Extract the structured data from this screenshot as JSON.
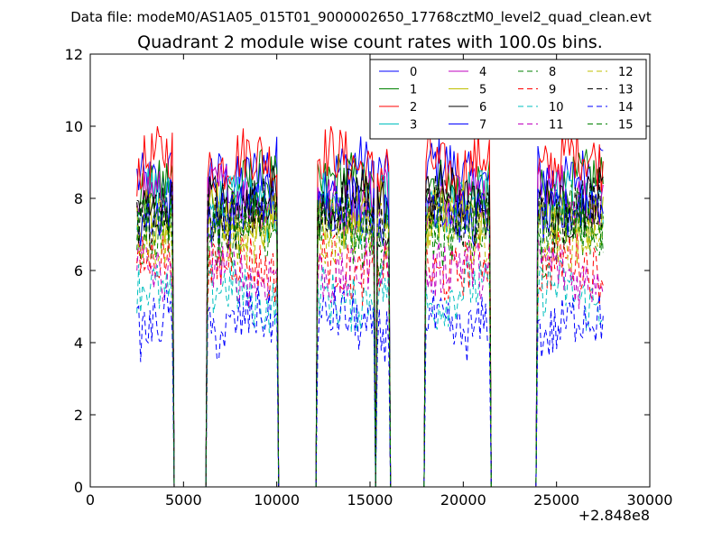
{
  "chart_data": {
    "type": "line",
    "suptitle": "Data file: modeM0/AS1A05_015T01_9000002650_17768cztM0_level2_quad_clean.evt",
    "title": "Quadrant 2 module wise count rates with 100.0s bins.",
    "xlabel": "",
    "ylabel": "",
    "x_offset_label": "+2.848e8",
    "xlim": [
      0,
      30000
    ],
    "ylim": [
      0,
      12
    ],
    "xticks": [
      0,
      5000,
      10000,
      15000,
      20000,
      25000,
      30000
    ],
    "yticks": [
      0,
      2,
      4,
      6,
      8,
      10,
      12
    ],
    "grid": false,
    "legend_position": "top-right",
    "legend_columns": 4,
    "bin_seconds": 100,
    "active_intervals": [
      [
        2500,
        4400
      ],
      [
        6300,
        10000
      ],
      [
        12200,
        15200
      ],
      [
        15400,
        16000
      ],
      [
        18000,
        21400
      ],
      [
        24000,
        27500
      ]
    ],
    "series": [
      {
        "name": "0",
        "color": "#0000ff",
        "dash": "solid",
        "level": 8.7
      },
      {
        "name": "1",
        "color": "#008000",
        "dash": "solid",
        "level": 8.3
      },
      {
        "name": "2",
        "color": "#ff0000",
        "dash": "solid",
        "level": 9.0
      },
      {
        "name": "3",
        "color": "#00bfbf",
        "dash": "solid",
        "level": 7.8
      },
      {
        "name": "4",
        "color": "#bf00bf",
        "dash": "solid",
        "level": 8.0
      },
      {
        "name": "5",
        "color": "#bfbf00",
        "dash": "solid",
        "level": 7.5
      },
      {
        "name": "6",
        "color": "#000000",
        "dash": "solid",
        "level": 7.9
      },
      {
        "name": "7",
        "color": "#0000ff",
        "dash": "solid",
        "level": 7.7
      },
      {
        "name": "8",
        "color": "#008000",
        "dash": "dashed",
        "level": 6.9
      },
      {
        "name": "9",
        "color": "#ff0000",
        "dash": "dashed",
        "level": 6.1
      },
      {
        "name": "10",
        "color": "#00bfbf",
        "dash": "dashed",
        "level": 5.3
      },
      {
        "name": "11",
        "color": "#bf00bf",
        "dash": "dashed",
        "level": 6.0
      },
      {
        "name": "12",
        "color": "#bfbf00",
        "dash": "dashed",
        "level": 7.1
      },
      {
        "name": "13",
        "color": "#000000",
        "dash": "dashed",
        "level": 7.6
      },
      {
        "name": "14",
        "color": "#0000ff",
        "dash": "dashed",
        "level": 4.5
      },
      {
        "name": "15",
        "color": "#008000",
        "dash": "dashed",
        "level": 7.3
      }
    ]
  }
}
